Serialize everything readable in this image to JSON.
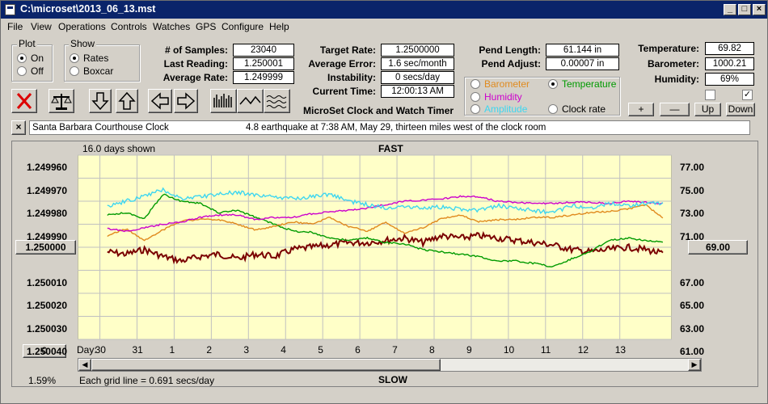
{
  "window": {
    "title": "C:\\microset\\2013_06_13.mst"
  },
  "menu": [
    "File",
    "View",
    "Operations",
    "Controls",
    "Watches",
    "GPS",
    "Configure",
    "Help"
  ],
  "plot_group": {
    "title": "Plot",
    "on": "On",
    "off": "Off"
  },
  "show_group": {
    "title": "Show",
    "rates": "Rates",
    "boxcar": "Boxcar"
  },
  "stats": {
    "samples_label": "# of Samples:",
    "samples": "23040",
    "last_label": "Last Reading:",
    "last": "1.250001",
    "avg_label": "Average Rate:",
    "avg": "1.249999",
    "target_label": "Target Rate:",
    "target": "1.2500000",
    "error_label": "Average Error:",
    "error": "1.6 sec/month",
    "instab_label": "Instability:",
    "instab": "0 secs/day",
    "time_label": "Current Time:",
    "time": "12:00:13 AM",
    "pend_len_label": "Pend Length:",
    "pend_len": "61.144 in",
    "pend_adj_label": "Pend Adjust:",
    "pend_adj": "0.00007 in",
    "temp_label": "Temperature:",
    "temp": "69.82",
    "baro_label": "Barometer:",
    "baro": "1000.21",
    "hum_label": "Humidity:",
    "hum": "69%"
  },
  "app_title": "MicroSet Clock and Watch Timer",
  "sensors": {
    "barometer": {
      "label": "Barometer",
      "color": "#e08a1e"
    },
    "temperature": {
      "label": "Temperature",
      "color": "#009a00"
    },
    "humidity": {
      "label": "Humidity",
      "color": "#cc00cc"
    },
    "amplitude": {
      "label": "Amplitude",
      "color": "#3ed6f0"
    },
    "clockrate": {
      "label": "Clock rate",
      "color": "#000000"
    }
  },
  "small_buttons": [
    "+",
    "—",
    "Up",
    "Down"
  ],
  "info": {
    "clock": "Santa Barbara Courthouse Clock",
    "note": "4.8 earthquake at 7:38 AM, May 29, thirteen miles west of the clock room"
  },
  "chart_data": {
    "type": "line",
    "top_label": "FAST",
    "bottom_label": "SLOW",
    "days_shown": "16.0 days shown",
    "y_left": {
      "ticks": [
        "1.249960",
        "1.249970",
        "1.249980",
        "1.249990",
        "1.250000",
        "1.250010",
        "1.250020",
        "1.250030",
        "1.250040"
      ],
      "range": [
        1.24996,
        1.25004
      ],
      "inverted": true
    },
    "y_right": {
      "ticks": [
        "77.00",
        "75.00",
        "73.00",
        "71.00",
        "69.00",
        "67.00",
        "65.00",
        "63.00",
        "61.00"
      ],
      "range": [
        61,
        77
      ]
    },
    "x_label": "Day:",
    "x_ticks": [
      "30",
      "31",
      "1",
      "2",
      "3",
      "4",
      "5",
      "6",
      "7",
      "8",
      "9",
      "10",
      "11",
      "12",
      "13"
    ],
    "baseline_button": "1.250000",
    "right_button": "69.00",
    "zero_button": "0",
    "percent": "1.59%",
    "grid_note": "Each grid line = 0.691 secs/day",
    "x_range_days": [
      0,
      16
    ],
    "series": [
      {
        "name": "Clock rate",
        "color": "#7a0000",
        "x": [
          0,
          0.5,
          1,
          1.5,
          2,
          2.5,
          3,
          3.5,
          4,
          4.5,
          5,
          5.5,
          6,
          6.5,
          7,
          7.5,
          8,
          8.5,
          9,
          9.5,
          10,
          10.5,
          11,
          11.5,
          12,
          12.5,
          13,
          13.5,
          14,
          14.5,
          15
        ],
        "y": [
          1.250002,
          1.250003,
          1.250001,
          1.250004,
          1.250006,
          1.250004,
          1.250003,
          1.250005,
          1.250003,
          1.250004,
          1.250001,
          1.25,
          1.249999,
          1.249998,
          1.249998,
          1.249997,
          1.249996,
          1.249998,
          1.249995,
          1.249996,
          1.249995,
          1.249996,
          1.249997,
          1.249998,
          1.249999,
          1.250001,
          1.250002,
          1.250001,
          1.25,
          1.250001,
          1.250003
        ]
      },
      {
        "name": "Temperature",
        "color": "#009a00",
        "x": [
          0,
          0.5,
          1,
          1.5,
          2,
          2.5,
          3,
          3.5,
          4,
          4.5,
          5,
          5.5,
          6,
          6.5,
          7,
          7.5,
          8,
          8.5,
          9,
          9.5,
          10,
          10.5,
          11,
          11.5,
          12,
          12.5,
          13,
          13.5,
          14,
          14.5,
          15
        ],
        "y": [
          71.8,
          72.0,
          71.5,
          73.6,
          73.0,
          72.8,
          72.0,
          72.2,
          71.6,
          71.0,
          70.4,
          70.3,
          69.8,
          69.6,
          69.8,
          69.4,
          69.3,
          68.8,
          68.6,
          68.4,
          68.2,
          67.8,
          67.8,
          67.6,
          67.3,
          68.0,
          68.6,
          69.6,
          69.8,
          69.6,
          69.4
        ]
      },
      {
        "name": "Barometer",
        "color": "#e08a1e",
        "x": [
          0,
          0.5,
          1,
          1.5,
          2,
          2.5,
          3,
          3.5,
          4,
          4.5,
          5,
          5.5,
          6,
          6.5,
          7,
          7.5,
          8,
          8.5,
          9,
          9.5,
          10,
          10.5,
          11,
          11.5,
          12,
          12.5,
          13,
          13.5,
          14,
          14.5,
          15
        ],
        "y": [
          70.0,
          70.6,
          69.6,
          70.5,
          71.3,
          71.4,
          71.4,
          71.0,
          70.5,
          70.8,
          71.2,
          71.0,
          71.6,
          70.8,
          70.4,
          71.2,
          70.2,
          70.7,
          71.5,
          71.8,
          71.2,
          71.4,
          71.4,
          71.6,
          71.6,
          71.8,
          72.0,
          72.1,
          72.3,
          72.7,
          71.4
        ]
      },
      {
        "name": "Humidity",
        "color": "#cc00cc",
        "x": [
          0,
          0.5,
          1,
          1.5,
          2,
          2.5,
          3,
          3.5,
          4,
          4.5,
          5,
          5.5,
          6,
          6.5,
          7,
          7.5,
          8,
          8.5,
          9,
          9.5,
          10,
          10.5,
          11,
          11.5,
          12,
          12.5,
          13,
          13.5,
          14,
          14.5,
          15
        ],
        "y": [
          70.6,
          70.4,
          70.7,
          71.0,
          71.2,
          71.6,
          71.8,
          71.8,
          71.4,
          71.6,
          71.6,
          71.9,
          72.1,
          72.2,
          72.4,
          72.7,
          73.0,
          73.1,
          73.2,
          73.4,
          73.4,
          73.0,
          72.9,
          72.8,
          72.8,
          72.9,
          72.9,
          72.8,
          73.0,
          72.9,
          72.8
        ]
      },
      {
        "name": "Amplitude",
        "color": "#3ed6f0",
        "x": [
          0,
          0.5,
          1,
          1.5,
          2,
          2.5,
          3,
          3.5,
          4,
          4.5,
          5,
          5.5,
          6,
          6.5,
          7,
          7.5,
          8,
          8.5,
          9,
          9.5,
          10,
          10.5,
          11,
          11.5,
          12,
          12.5,
          13,
          13.5,
          14,
          14.5,
          15
        ],
        "y": [
          72.6,
          73.0,
          73.4,
          74.0,
          73.2,
          73.4,
          73.6,
          73.8,
          73.5,
          73.4,
          73.2,
          73.4,
          73.6,
          73.0,
          72.7,
          72.4,
          72.6,
          72.4,
          72.5,
          72.3,
          72.2,
          72.6,
          72.4,
          72.2,
          72.0,
          72.6,
          72.4,
          72.8,
          72.6,
          72.8,
          72.8
        ]
      }
    ]
  }
}
